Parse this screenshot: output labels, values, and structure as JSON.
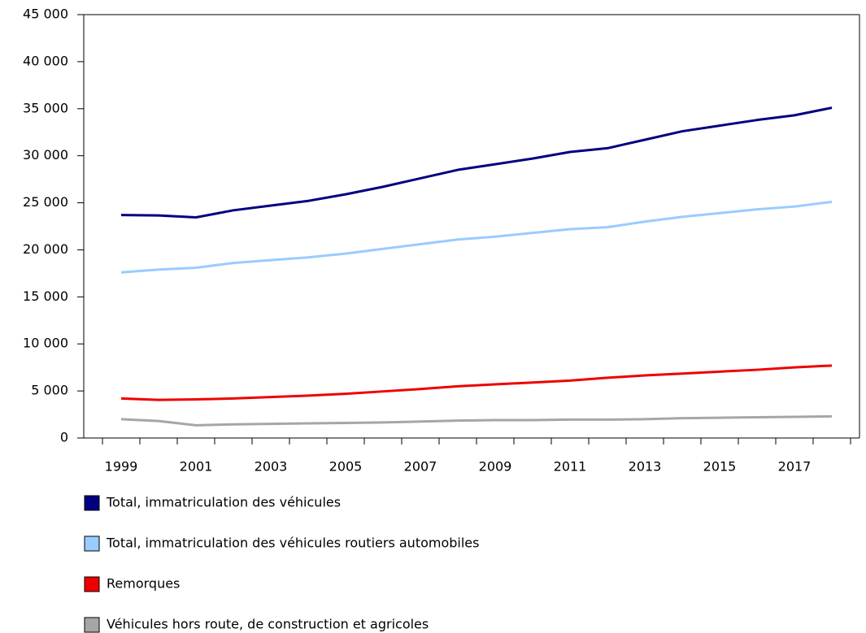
{
  "chart_data": {
    "type": "line",
    "categories": [
      "1999",
      null,
      "2001",
      null,
      "2003",
      null,
      "2005",
      null,
      "2007",
      null,
      "2009",
      null,
      "2011",
      null,
      "2013",
      null,
      "2015",
      null,
      "2017",
      null
    ],
    "series": [
      {
        "name": "Total, immatriculation des véhicules",
        "color": "#000080",
        "values": [
          23700,
          23650,
          23450,
          24200,
          24700,
          25200,
          25900,
          26700,
          27600,
          28500,
          29100,
          29700,
          30400,
          30800,
          31700,
          32600,
          33200,
          33800,
          34300,
          35100
        ]
      },
      {
        "name": "Total, immatriculation des véhicules routiers automobiles",
        "color": "#99ccff",
        "values": [
          17600,
          17900,
          18100,
          18600,
          18900,
          19200,
          19600,
          20100,
          20600,
          21100,
          21400,
          21800,
          22200,
          22400,
          23000,
          23500,
          23900,
          24300,
          24600,
          25100
        ]
      },
      {
        "name": "Remorques",
        "color": "#ee0000",
        "values": [
          4200,
          4050,
          4100,
          4200,
          4350,
          4500,
          4700,
          4950,
          5200,
          5500,
          5700,
          5900,
          6100,
          6400,
          6650,
          6850,
          7050,
          7250,
          7500,
          7700
        ]
      },
      {
        "name": "Véhicules hors route, de construction et agricoles",
        "color": "#a6a6a6",
        "values": [
          2000,
          1800,
          1350,
          1450,
          1500,
          1550,
          1600,
          1650,
          1750,
          1850,
          1900,
          1900,
          1950,
          1950,
          2000,
          2100,
          2150,
          2200,
          2250,
          2300
        ]
      }
    ],
    "ylim": [
      0,
      45000
    ],
    "yticks": [
      0,
      {
        "value": 5000,
        "label": "5 000"
      },
      {
        "value": 10000,
        "label": "10 000"
      },
      {
        "value": 15000,
        "label": "15 000"
      },
      {
        "value": 20000,
        "label": "20 000"
      },
      {
        "value": 25000,
        "label": "25 000"
      },
      {
        "value": 30000,
        "label": "30 000"
      },
      {
        "value": 35000,
        "label": "35 000"
      },
      {
        "value": 40000,
        "label": "40 000"
      },
      {
        "value": 45000,
        "label": "45 000"
      }
    ],
    "grid": false,
    "legend": "bottom"
  }
}
